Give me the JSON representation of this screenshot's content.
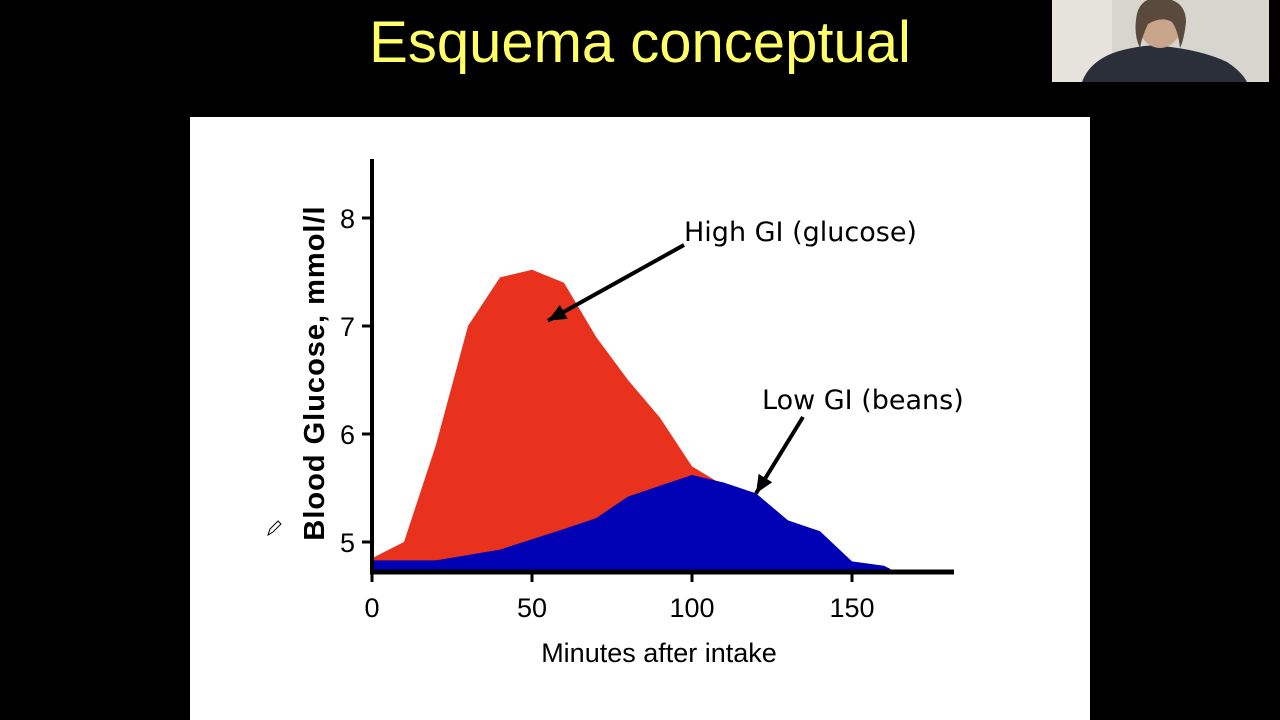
{
  "slide": {
    "title": "Esquema conceptual"
  },
  "colors": {
    "title": "#ffff66",
    "background": "#000000",
    "panel": "#ffffff",
    "high_gi": "#e8321e",
    "low_gi": "#0000b4",
    "axis": "#000000"
  },
  "chart_data": {
    "type": "area",
    "title": "",
    "xlabel": "Minutes after intake",
    "ylabel": "Blood Glucose, mmol/l",
    "xlim": [
      0,
      180
    ],
    "ylim": [
      4.7,
      8.5
    ],
    "xticks": [
      0,
      50,
      100,
      150
    ],
    "yticks": [
      5,
      6,
      7,
      8
    ],
    "grid": false,
    "legend": "none",
    "series": [
      {
        "name": "High GI (glucose)",
        "color": "#e8321e",
        "x": [
          0,
          10,
          20,
          30,
          40,
          50,
          60,
          70,
          80,
          90,
          100,
          110,
          120
        ],
        "y": [
          4.85,
          5.0,
          5.9,
          7.0,
          7.45,
          7.52,
          7.4,
          6.9,
          6.5,
          6.15,
          5.7,
          5.52,
          5.45
        ]
      },
      {
        "name": "Low GI (beans)",
        "color": "#0000b4",
        "x": [
          0,
          20,
          40,
          60,
          70,
          80,
          90,
          100,
          110,
          120,
          130,
          140,
          150,
          160,
          162
        ],
        "y": [
          4.83,
          4.83,
          4.93,
          5.12,
          5.22,
          5.42,
          5.52,
          5.62,
          5.55,
          5.45,
          5.2,
          5.1,
          4.82,
          4.78,
          4.75
        ]
      }
    ],
    "annotations": [
      {
        "text": "High GI (glucose)",
        "target_x": 55,
        "target_y": 7.05
      },
      {
        "text": "Low GI (beans)",
        "target_x": 120,
        "target_y": 5.45
      }
    ]
  }
}
